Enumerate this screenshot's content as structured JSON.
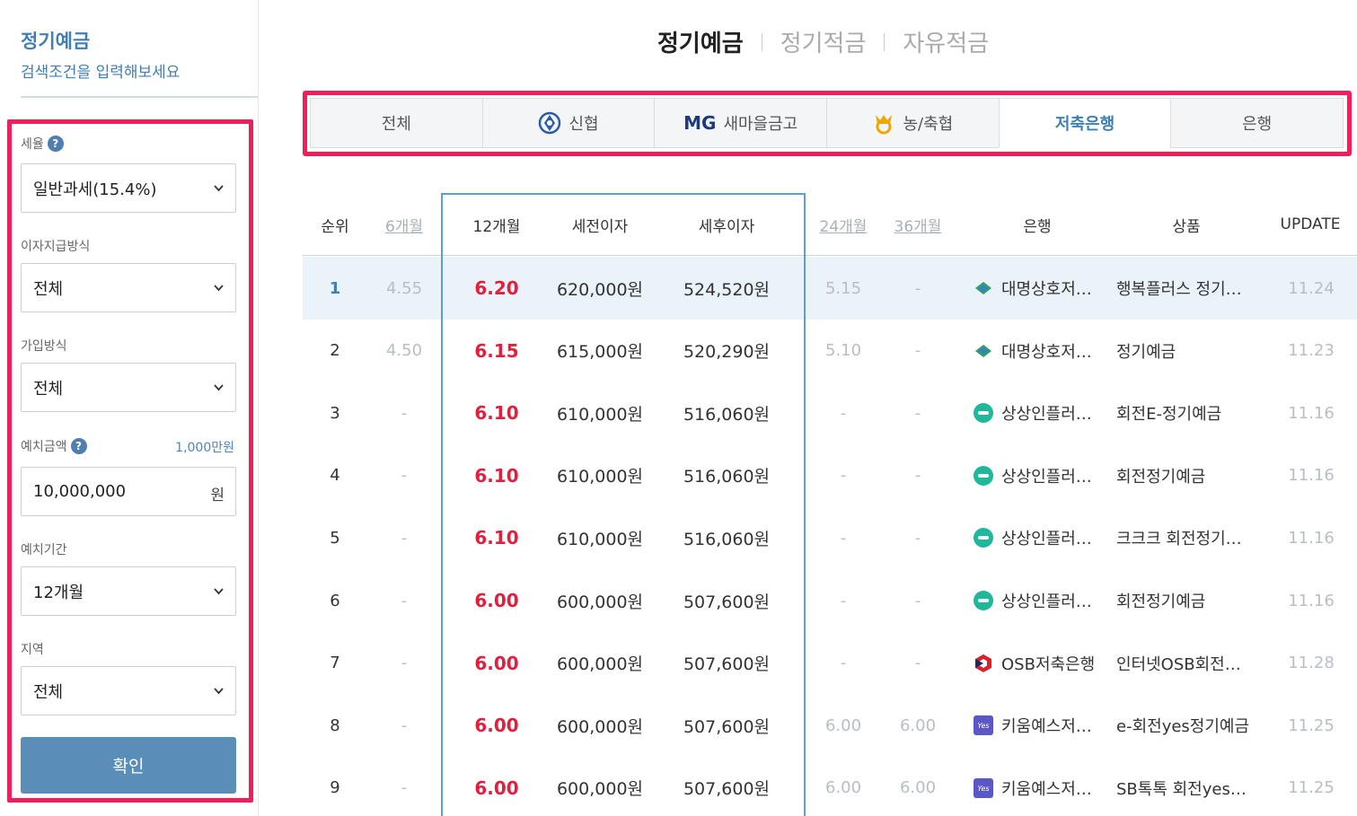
{
  "sidebar": {
    "title": "정기예금",
    "subtitle": "검색조건을 입력해보세요",
    "tax_label": "세율",
    "tax_value": "일반과세(15.4%)",
    "interest_label": "이자지급방식",
    "interest_value": "전체",
    "join_label": "가입방식",
    "join_value": "전체",
    "amount_label": "예치금액",
    "amount_hint": "1,000만원",
    "amount_value": "10,000,000",
    "amount_unit": "원",
    "period_label": "예치기간",
    "period_value": "12개월",
    "region_label": "지역",
    "region_value": "전체",
    "confirm_label": "확인",
    "help_glyph": "?"
  },
  "top_tabs": [
    "정기예금",
    "정기적금",
    "자유적금"
  ],
  "bank_tabs": [
    "전체",
    "신협",
    "새마을금고",
    "농/축협",
    "저축은행",
    "은행"
  ],
  "bank_tab_mg": "MG",
  "table": {
    "headers": {
      "rank": "순위",
      "m6": "6개월",
      "m12": "12개월",
      "pre_tax": "세전이자",
      "post_tax": "세후이자",
      "m24": "24개월",
      "m36": "36개월",
      "bank": "은행",
      "product": "상품",
      "update": "UPDATE"
    },
    "rows": [
      {
        "rank": "1",
        "m6": "4.55",
        "m12": "6.20",
        "pre": "620,000원",
        "post": "524,520원",
        "m24": "5.15",
        "m36": "-",
        "bank": "대명상호저…",
        "product": "행복플러스 정기…",
        "update": "11.24",
        "logo": "diamond-green"
      },
      {
        "rank": "2",
        "m6": "4.50",
        "m12": "6.15",
        "pre": "615,000원",
        "post": "520,290원",
        "m24": "5.10",
        "m36": "-",
        "bank": "대명상호저…",
        "product": "정기예금",
        "update": "11.23",
        "logo": "diamond-green"
      },
      {
        "rank": "3",
        "m6": "-",
        "m12": "6.10",
        "pre": "610,000원",
        "post": "516,060원",
        "m24": "-",
        "m36": "-",
        "bank": "상상인플러…",
        "product": "회전E-정기예금",
        "update": "11.16",
        "logo": "circle-teal"
      },
      {
        "rank": "4",
        "m6": "-",
        "m12": "6.10",
        "pre": "610,000원",
        "post": "516,060원",
        "m24": "-",
        "m36": "-",
        "bank": "상상인플러…",
        "product": "회전정기예금",
        "update": "11.16",
        "logo": "circle-teal"
      },
      {
        "rank": "5",
        "m6": "-",
        "m12": "6.10",
        "pre": "610,000원",
        "post": "516,060원",
        "m24": "-",
        "m36": "-",
        "bank": "상상인플러…",
        "product": "크크크 회전정기…",
        "update": "11.16",
        "logo": "circle-teal"
      },
      {
        "rank": "6",
        "m6": "-",
        "m12": "6.00",
        "pre": "600,000원",
        "post": "507,600원",
        "m24": "-",
        "m36": "-",
        "bank": "상상인플러…",
        "product": "회전정기예금",
        "update": "11.16",
        "logo": "circle-teal"
      },
      {
        "rank": "7",
        "m6": "-",
        "m12": "6.00",
        "pre": "600,000원",
        "post": "507,600원",
        "m24": "-",
        "m36": "-",
        "bank": "OSB저축은행",
        "product": "인터넷OSB회전…",
        "update": "11.28",
        "logo": "hex-osb"
      },
      {
        "rank": "8",
        "m6": "-",
        "m12": "6.00",
        "pre": "600,000원",
        "post": "507,600원",
        "m24": "6.00",
        "m36": "6.00",
        "bank": "키움예스저…",
        "product": "e-회전yes정기예금",
        "update": "11.25",
        "logo": "square-yes"
      },
      {
        "rank": "9",
        "m6": "-",
        "m12": "6.00",
        "pre": "600,000원",
        "post": "507,600원",
        "m24": "6.00",
        "m36": "6.00",
        "bank": "키움예스저…",
        "product": "SB톡톡 회전yes…",
        "update": "11.25",
        "logo": "square-yes"
      }
    ]
  },
  "colors": {
    "accent_blue": "#3f7fb5",
    "highlight_red": "#ee1f5a",
    "rate_red": "#e0203f",
    "button_blue": "#5a8db7"
  }
}
